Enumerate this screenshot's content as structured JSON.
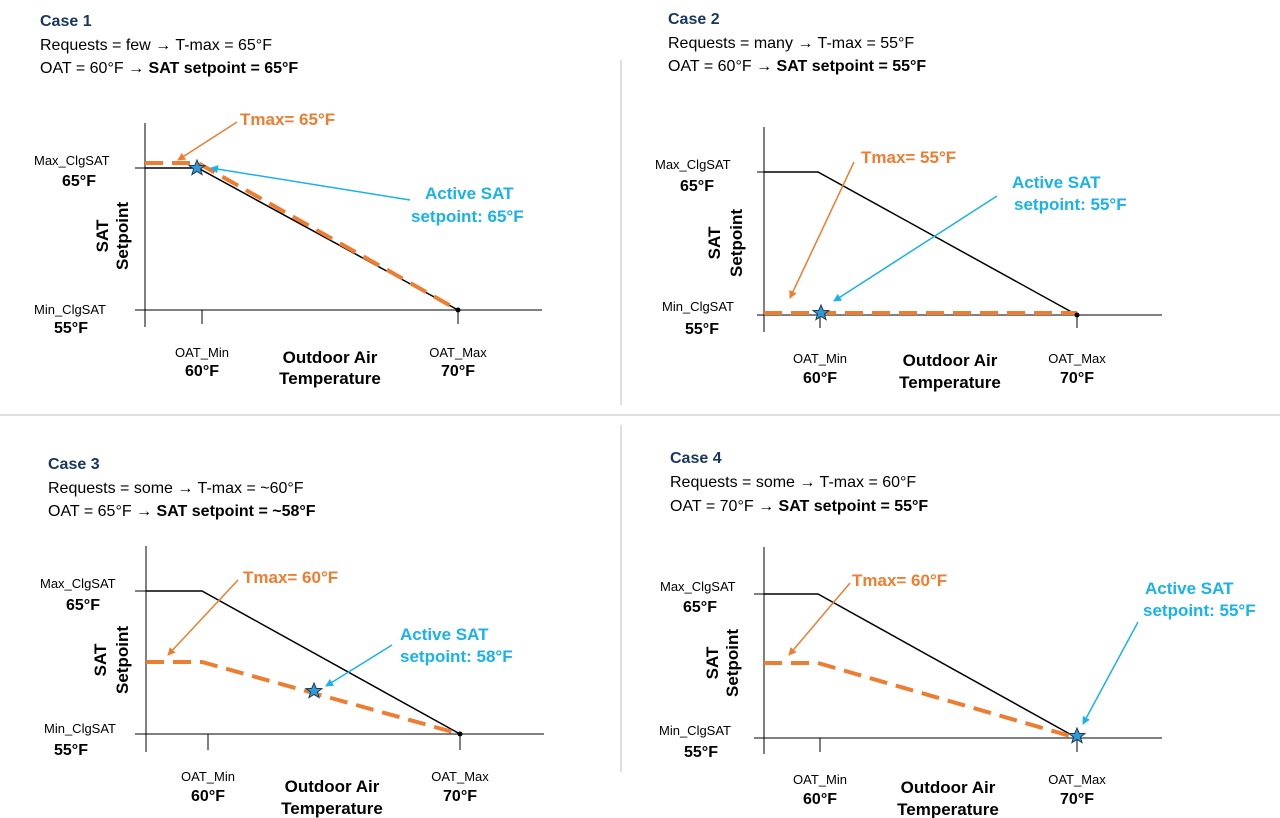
{
  "colors": {
    "title": "#17375e",
    "tmax": "#ed7d31",
    "active": "#1ab2e8",
    "star": "#2f9bd6",
    "line": "#000000",
    "divider": "#bfbfbf"
  },
  "labels": {
    "max_sat": "Max_ClgSAT",
    "min_sat": "Min_ClgSAT",
    "temp_65": "65°F",
    "temp_55": "55°F",
    "oat_min": "OAT_Min",
    "oat_max": "OAT_Max",
    "temp_60": "60°F",
    "temp_70": "70°F",
    "x_title_line1": "Outdoor Air",
    "x_title_line2": "Temperature",
    "y_title_line1": "SAT",
    "y_title_line2": "Setpoint"
  },
  "cases": [
    {
      "title": "Case 1",
      "line1": "Requests = few → T-max = 65°F",
      "line2_plain": "OAT = 60°F → ",
      "line2_bold": "SAT setpoint = 65°F",
      "tmax_label": "Tmax= 65°F",
      "active_line1": "Active SAT",
      "active_line2": "setpoint: 65°F"
    },
    {
      "title": "Case 2",
      "line1": "Requests = many → T-max = 55°F",
      "line2_plain": "OAT = 60°F → ",
      "line2_bold": "SAT setpoint = 55°F",
      "tmax_label": "Tmax= 55°F",
      "active_line1": "Active SAT",
      "active_line2": "setpoint: 55°F"
    },
    {
      "title": "Case 3",
      "line1": "Requests = some → T-max = ~60°F",
      "line2_plain": "OAT = 65°F → ",
      "line2_bold": "SAT setpoint = ~58°F",
      "tmax_label": "Tmax= 60°F",
      "active_line1": "Active SAT",
      "active_line2": "setpoint: 58°F"
    },
    {
      "title": "Case 4",
      "line1": "Requests = some → T-max = 60°F",
      "line2_plain": "OAT = 70°F → ",
      "line2_bold": "SAT setpoint = 55°F",
      "tmax_label": "Tmax= 60°F",
      "active_line1": "Active SAT",
      "active_line2": "setpoint: 55°F"
    }
  ]
}
